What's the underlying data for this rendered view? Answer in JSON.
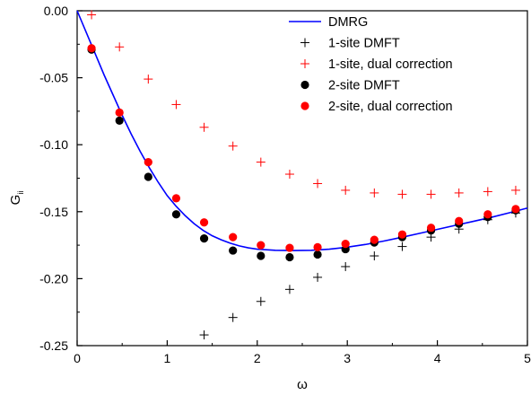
{
  "chart_data": {
    "type": "scatter",
    "xlabel": "ω",
    "ylabel": "G",
    "ylabel_subscript": "ii",
    "xlim": [
      0,
      5
    ],
    "ylim": [
      -0.25,
      0.0
    ],
    "x_ticks": [
      0,
      1,
      2,
      3,
      4,
      5
    ],
    "x_tick_labels": [
      "0",
      "1",
      "2",
      "3",
      "4",
      "5"
    ],
    "y_ticks": [
      0.0,
      -0.05,
      -0.1,
      -0.15,
      -0.2,
      -0.25
    ],
    "y_tick_labels": [
      "0.00",
      "-0.05",
      "-0.10",
      "-0.15",
      "-0.20",
      "-0.25"
    ],
    "grid": false,
    "legend_position": "top-right",
    "series": [
      {
        "name": "DMRG",
        "style": "line",
        "color": "#0000ff",
        "x": [
          0.0,
          0.1,
          0.2,
          0.3,
          0.4,
          0.5,
          0.6,
          0.7,
          0.8,
          0.9,
          1.0,
          1.1,
          1.2,
          1.3,
          1.4,
          1.5,
          1.6,
          1.7,
          1.8,
          1.9,
          2.0,
          2.2,
          2.4,
          2.6,
          2.8,
          3.0,
          3.2,
          3.4,
          3.6,
          3.8,
          4.0,
          4.2,
          4.4,
          4.6,
          4.8,
          5.0
        ],
        "y": [
          0.0,
          -0.016,
          -0.032,
          -0.048,
          -0.063,
          -0.078,
          -0.092,
          -0.105,
          -0.117,
          -0.128,
          -0.138,
          -0.146,
          -0.153,
          -0.159,
          -0.164,
          -0.168,
          -0.171,
          -0.1735,
          -0.1755,
          -0.177,
          -0.178,
          -0.1788,
          -0.179,
          -0.1788,
          -0.178,
          -0.1765,
          -0.1745,
          -0.172,
          -0.1692,
          -0.1662,
          -0.1632,
          -0.1602,
          -0.1572,
          -0.1542,
          -0.1508,
          -0.1473
        ]
      },
      {
        "name": "1-site DMFT",
        "style": "plus",
        "color": "#000000",
        "x": [
          1.41,
          1.73,
          2.04,
          2.36,
          2.67,
          2.98,
          3.3,
          3.61,
          3.93,
          4.24,
          4.56,
          4.87
        ],
        "y": [
          -0.242,
          -0.229,
          -0.217,
          -0.208,
          -0.199,
          -0.191,
          -0.183,
          -0.176,
          -0.169,
          -0.163,
          -0.156,
          -0.151
        ]
      },
      {
        "name": "1-site, dual correction",
        "style": "plus",
        "color": "#ff0000",
        "x": [
          0.16,
          0.47,
          0.79,
          1.1,
          1.41,
          1.73,
          2.04,
          2.36,
          2.67,
          2.98,
          3.3,
          3.61,
          3.93,
          4.24,
          4.56,
          4.87
        ],
        "y": [
          -0.003,
          -0.027,
          -0.051,
          -0.07,
          -0.087,
          -0.101,
          -0.113,
          -0.122,
          -0.129,
          -0.134,
          -0.136,
          -0.137,
          -0.137,
          -0.136,
          -0.135,
          -0.134
        ]
      },
      {
        "name": "2-site DMFT",
        "style": "dot",
        "color": "#000000",
        "x": [
          0.16,
          0.47,
          0.79,
          1.1,
          1.41,
          1.73,
          2.04,
          2.36,
          2.67,
          2.98,
          3.3,
          3.61,
          3.93,
          4.24,
          4.56,
          4.87
        ],
        "y": [
          -0.029,
          -0.082,
          -0.124,
          -0.152,
          -0.17,
          -0.179,
          -0.183,
          -0.184,
          -0.182,
          -0.178,
          -0.173,
          -0.169,
          -0.164,
          -0.159,
          -0.154,
          -0.149
        ]
      },
      {
        "name": "2-site, dual correction",
        "style": "dot",
        "color": "#ff0000",
        "x": [
          0.16,
          0.47,
          0.79,
          1.1,
          1.41,
          1.73,
          2.04,
          2.36,
          2.67,
          2.98,
          3.3,
          3.61,
          3.93,
          4.24,
          4.56,
          4.87
        ],
        "y": [
          -0.028,
          -0.076,
          -0.113,
          -0.14,
          -0.158,
          -0.169,
          -0.175,
          -0.177,
          -0.1765,
          -0.174,
          -0.171,
          -0.167,
          -0.162,
          -0.157,
          -0.152,
          -0.148
        ]
      }
    ]
  }
}
